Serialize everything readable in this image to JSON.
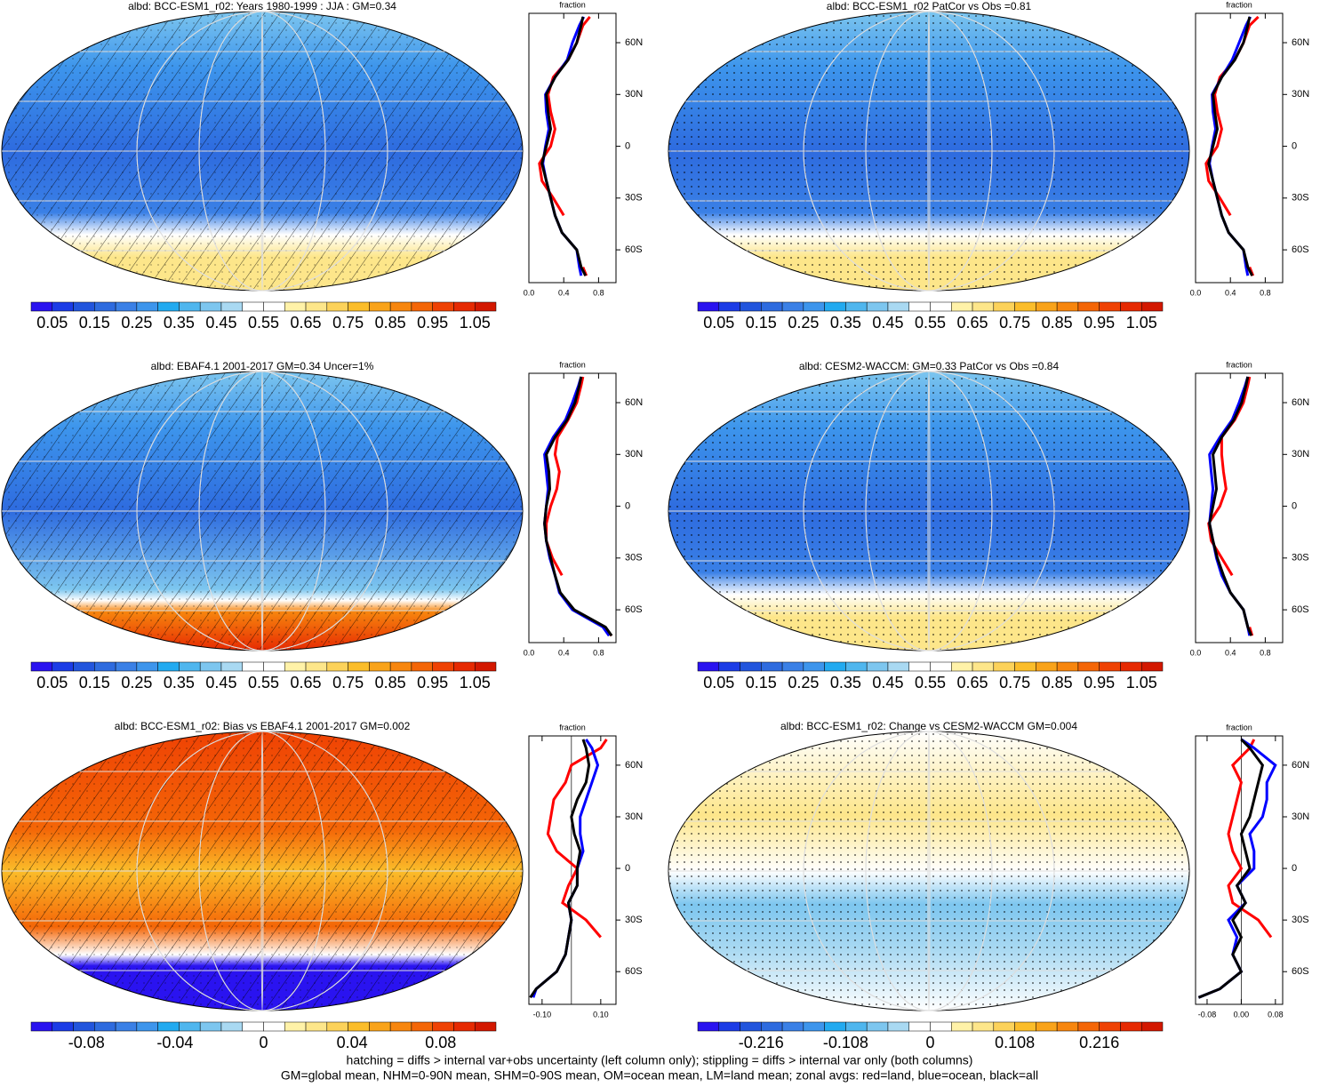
{
  "palette": [
    "#2a13f0",
    "#1c3ce6",
    "#2255dd",
    "#2e6bdf",
    "#3a80e6",
    "#3d95ec",
    "#22aaf0",
    "#4fb6ee",
    "#7dc6ef",
    "#a9d9f2",
    "#ffffff",
    "#ffffff",
    "#fff2a8",
    "#fde68a",
    "#fcd25a",
    "#fbbd2a",
    "#f9a31a",
    "#f7860e",
    "#f46607",
    "#ef4204",
    "#e62a02",
    "#d31800"
  ],
  "chart_data": [
    {
      "type": "map",
      "title": "albd: BCC-ESM1_r02: Years 1980-1999 : JJA : GM=0.34",
      "colorbar": {
        "lim": [
          0,
          1.1
        ],
        "ticks": [
          0.05,
          0.15,
          0.25,
          0.35,
          0.45,
          0.55,
          0.65,
          0.75,
          0.85,
          0.95,
          1.05
        ]
      },
      "zonal": {
        "xlabel": "fraction",
        "xlim": [
          0,
          1.0
        ],
        "xticks": [
          {
            "value": 0,
            "label": "0.0"
          },
          0.4,
          0.8
        ],
        "ylim": [
          -79,
          77
        ],
        "yticks": [
          {
            "value": 60,
            "label": "60N"
          },
          {
            "value": 30,
            "label": "30N"
          },
          {
            "value": 0,
            "label": "0"
          },
          {
            "value": -30,
            "label": "30S"
          },
          {
            "value": -60,
            "label": "60S"
          }
        ],
        "lat": [
          -75,
          -70,
          -60,
          -50,
          -40,
          -30,
          -20,
          -10,
          0,
          10,
          20,
          30,
          40,
          50,
          60,
          70,
          75
        ],
        "series": [
          {
            "color": "#ff0000",
            "values": [
              0.66,
              0.62,
              null,
              null,
              0.4,
              0.28,
              0.15,
              0.12,
              0.25,
              0.3,
              0.25,
              0.22,
              0.28,
              0.45,
              0.55,
              0.62,
              0.7
            ]
          },
          {
            "color": "#0000ff",
            "values": [
              0.6,
              0.58,
              0.55,
              0.38,
              0.3,
              0.25,
              0.2,
              0.16,
              0.19,
              0.23,
              0.2,
              0.19,
              0.3,
              0.44,
              0.5,
              0.58,
              0.63
            ]
          },
          {
            "color": "#000000",
            "values": [
              0.65,
              0.6,
              0.55,
              0.38,
              0.3,
              0.25,
              0.2,
              0.15,
              0.2,
              0.25,
              0.22,
              0.2,
              0.3,
              0.45,
              0.55,
              0.6,
              0.62
            ]
          }
        ]
      }
    },
    {
      "type": "map",
      "title": "albd: BCC-ESM1_r02 PatCor vs Obs =0.81",
      "colorbar": {
        "lim": [
          0,
          1.1
        ],
        "ticks": [
          0.05,
          0.15,
          0.25,
          0.35,
          0.45,
          0.55,
          0.65,
          0.75,
          0.85,
          0.95,
          1.05
        ]
      },
      "zonal": {
        "xlabel": "fraction",
        "xlim": [
          0,
          1.0
        ],
        "xticks": [
          {
            "value": 0,
            "label": "0.0"
          },
          0.4,
          0.8
        ],
        "ylim": [
          -79,
          77
        ],
        "yticks": [
          {
            "value": 60,
            "label": "60N"
          },
          {
            "value": 30,
            "label": "30N"
          },
          {
            "value": 0,
            "label": "0"
          },
          {
            "value": -30,
            "label": "30S"
          },
          {
            "value": -60,
            "label": "60S"
          }
        ],
        "lat": [
          -75,
          -70,
          -60,
          -50,
          -40,
          -30,
          -20,
          -10,
          0,
          10,
          20,
          30,
          40,
          50,
          60,
          70,
          75
        ],
        "series": [
          {
            "color": "#ff0000",
            "values": [
              0.66,
              0.62,
              null,
              null,
              0.4,
              0.28,
              0.15,
              0.12,
              0.25,
              0.3,
              0.25,
              0.22,
              0.28,
              0.45,
              0.55,
              0.62,
              0.72
            ]
          },
          {
            "color": "#0000ff",
            "values": [
              0.6,
              0.58,
              0.55,
              0.38,
              0.3,
              0.25,
              0.2,
              0.16,
              0.19,
              0.23,
              0.2,
              0.19,
              0.3,
              0.42,
              0.5,
              0.58,
              0.63
            ]
          },
          {
            "color": "#000000",
            "values": [
              0.65,
              0.6,
              0.55,
              0.38,
              0.3,
              0.25,
              0.2,
              0.15,
              0.2,
              0.25,
              0.22,
              0.2,
              0.3,
              0.45,
              0.55,
              0.6,
              0.62
            ]
          }
        ]
      }
    },
    {
      "type": "map",
      "title": "albd: EBAF4.1 2001-2017 GM=0.34 Uncer=1%",
      "colorbar": {
        "lim": [
          0,
          1.1
        ],
        "ticks": [
          0.05,
          0.15,
          0.25,
          0.35,
          0.45,
          0.55,
          0.65,
          0.75,
          0.85,
          0.95,
          1.05
        ]
      },
      "zonal": {
        "xlabel": "fraction",
        "xlim": [
          0,
          1.0
        ],
        "xticks": [
          {
            "value": 0,
            "label": "0.0"
          },
          0.4,
          0.8
        ],
        "ylim": [
          -79,
          77
        ],
        "yticks": [
          {
            "value": 60,
            "label": "60N"
          },
          {
            "value": 30,
            "label": "30N"
          },
          {
            "value": 0,
            "label": "0"
          },
          {
            "value": -30,
            "label": "30S"
          },
          {
            "value": -60,
            "label": "60S"
          }
        ],
        "lat": [
          -75,
          -70,
          -60,
          -50,
          -40,
          -30,
          -20,
          -10,
          0,
          10,
          20,
          30,
          40,
          50,
          60,
          70,
          75
        ],
        "series": [
          {
            "color": "#ff0000",
            "values": [
              0.95,
              0.85,
              null,
              null,
              0.38,
              0.27,
              0.2,
              0.2,
              0.25,
              0.32,
              0.35,
              0.3,
              0.33,
              0.45,
              0.55,
              0.6,
              0.62
            ]
          },
          {
            "color": "#0000ff",
            "values": [
              0.92,
              0.85,
              0.5,
              0.35,
              0.3,
              0.24,
              0.2,
              0.18,
              0.2,
              0.22,
              0.2,
              0.18,
              0.28,
              0.42,
              0.5,
              0.57,
              0.6
            ]
          },
          {
            "color": "#000000",
            "values": [
              0.95,
              0.88,
              0.52,
              0.36,
              0.3,
              0.25,
              0.2,
              0.18,
              0.2,
              0.24,
              0.23,
              0.2,
              0.3,
              0.44,
              0.53,
              0.58,
              0.6
            ]
          }
        ]
      }
    },
    {
      "type": "map",
      "title": "albd: CESM2-WACCM: GM=0.33 PatCor vs Obs =0.84",
      "colorbar": {
        "lim": [
          0,
          1.1
        ],
        "ticks": [
          0.05,
          0.15,
          0.25,
          0.35,
          0.45,
          0.55,
          0.65,
          0.75,
          0.85,
          0.95,
          1.05
        ]
      },
      "zonal": {
        "xlabel": "fraction",
        "xlim": [
          0,
          1.0
        ],
        "xticks": [
          {
            "value": 0,
            "label": "0.0"
          },
          0.4,
          0.8
        ],
        "ylim": [
          -79,
          77
        ],
        "yticks": [
          {
            "value": 60,
            "label": "60N"
          },
          {
            "value": 30,
            "label": "30N"
          },
          {
            "value": 0,
            "label": "0"
          },
          {
            "value": -30,
            "label": "30S"
          },
          {
            "value": -60,
            "label": "60S"
          }
        ],
        "lat": [
          -75,
          -70,
          -60,
          -50,
          -40,
          -30,
          -20,
          -10,
          0,
          10,
          20,
          30,
          40,
          50,
          60,
          70,
          75
        ],
        "series": [
          {
            "color": "#ff0000",
            "values": [
              0.65,
              0.62,
              null,
              null,
              0.42,
              0.3,
              0.18,
              0.15,
              0.28,
              0.35,
              0.32,
              0.3,
              0.3,
              0.45,
              0.55,
              0.6,
              0.62
            ]
          },
          {
            "color": "#0000ff",
            "values": [
              0.62,
              0.6,
              0.55,
              0.4,
              0.3,
              0.24,
              0.2,
              0.16,
              0.18,
              0.2,
              0.18,
              0.16,
              0.28,
              0.42,
              0.5,
              0.57,
              0.6
            ]
          },
          {
            "color": "#000000",
            "values": [
              0.64,
              0.6,
              0.55,
              0.4,
              0.32,
              0.25,
              0.2,
              0.16,
              0.2,
              0.24,
              0.22,
              0.2,
              0.3,
              0.44,
              0.53,
              0.58,
              0.6
            ]
          }
        ]
      }
    },
    {
      "type": "map",
      "title": "albd: BCC-ESM1_r02: Bias vs EBAF4.1 2001-2017 GM=0.002",
      "colorbar": {
        "lim": [
          -0.105,
          0.105
        ],
        "ticks": [
          -0.08,
          -0.04,
          0,
          0.04,
          0.08
        ]
      },
      "zonal": {
        "xlabel": "fraction",
        "xlim": [
          -0.145,
          0.152
        ],
        "xticks": [
          {
            "value": -0.1,
            "label": "-0.10"
          },
          {
            "value": 0.1,
            "label": "0.10"
          }
        ],
        "ylim": [
          -79,
          77
        ],
        "yticks": [
          {
            "value": 60,
            "label": "60N"
          },
          {
            "value": 30,
            "label": "30N"
          },
          {
            "value": 0,
            "label": "0"
          },
          {
            "value": -30,
            "label": "30S"
          },
          {
            "value": -60,
            "label": "60S"
          }
        ],
        "lat": [
          -75,
          -70,
          -60,
          -50,
          -40,
          -30,
          -20,
          -10,
          0,
          10,
          20,
          30,
          40,
          50,
          60,
          70,
          75
        ],
        "series": [
          {
            "color": "#ff0000",
            "values": [
              null,
              null,
              null,
              null,
              0.1,
              0.05,
              -0.03,
              -0.01,
              0.02,
              -0.05,
              -0.08,
              -0.07,
              -0.06,
              -0.02,
              0.0,
              0.1,
              0.12
            ]
          },
          {
            "color": "#0000ff",
            "values": [
              -0.13,
              -0.12,
              -0.05,
              -0.02,
              -0.01,
              0.0,
              -0.01,
              0.02,
              0.02,
              0.04,
              0.03,
              0.03,
              0.05,
              0.07,
              0.09,
              0.07,
              0.05
            ]
          },
          {
            "color": "#000000",
            "values": [
              -0.14,
              -0.12,
              -0.05,
              -0.02,
              -0.01,
              0.0,
              -0.01,
              0.02,
              0.02,
              0.03,
              0.01,
              0.0,
              0.02,
              0.05,
              0.06,
              0.05,
              0.04
            ]
          }
        ]
      }
    },
    {
      "type": "map",
      "title": "albd: BCC-ESM1_r02: Change vs CESM2-WACCM GM=0.004",
      "colorbar": {
        "lim": [
          -0.297,
          0.297
        ],
        "ticks": [
          -0.216,
          -0.108,
          0,
          0.108,
          0.216
        ]
      },
      "zonal": {
        "xlabel": "fraction",
        "xlim": [
          -0.107,
          0.097
        ],
        "xticks": [
          -0.08,
          {
            "value": 0,
            "label": "0.00"
          },
          0.08
        ],
        "ylim": [
          -79,
          77
        ],
        "yticks": [
          {
            "value": 60,
            "label": "60N"
          },
          {
            "value": 30,
            "label": "30N"
          },
          {
            "value": 0,
            "label": "0"
          },
          {
            "value": -30,
            "label": "30S"
          },
          {
            "value": -60,
            "label": "60S"
          }
        ],
        "lat": [
          -75,
          -70,
          -60,
          -50,
          -40,
          -30,
          -20,
          -10,
          0,
          10,
          20,
          30,
          40,
          50,
          60,
          70,
          75
        ],
        "series": [
          {
            "color": "#ff0000",
            "values": [
              null,
              null,
              null,
              null,
              0.07,
              0.04,
              -0.02,
              -0.03,
              0.0,
              -0.02,
              -0.03,
              -0.02,
              -0.01,
              0.0,
              -0.02,
              0.02,
              0.03
            ]
          },
          {
            "color": "#0000ff",
            "values": [
              -0.1,
              -0.05,
              0.0,
              -0.02,
              -0.01,
              -0.03,
              0.01,
              -0.01,
              0.03,
              0.03,
              0.02,
              0.05,
              0.06,
              0.06,
              0.08,
              0.03,
              0.0
            ]
          },
          {
            "color": "#000000",
            "values": [
              -0.1,
              -0.05,
              0.0,
              -0.02,
              0.0,
              -0.02,
              0.01,
              -0.01,
              0.02,
              0.01,
              0.0,
              0.02,
              0.03,
              0.04,
              0.05,
              0.02,
              0.0
            ]
          }
        ]
      }
    }
  ],
  "footer": [
    "hatching = diffs > internal var+obs uncertainty (left column only); stippling = diffs > internal var only (both columns)",
    "GM=global mean, NHM=0-90N mean, SHM=0-90S mean, OM=ocean mean, LM=land mean; zonal avgs: red=land, blue=ocean, black=all"
  ]
}
